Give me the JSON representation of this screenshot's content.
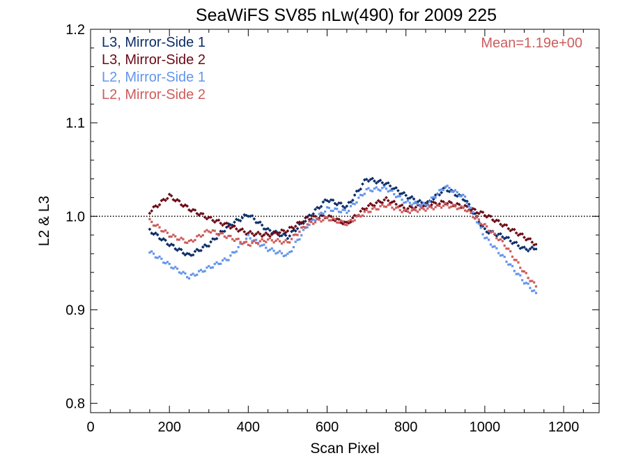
{
  "chart_data": {
    "type": "scatter",
    "title": "SeaWiFS SV85 nLw(490) for 2009 225",
    "xlabel": "Scan Pixel",
    "ylabel": "L2 & L3",
    "xlim": [
      0,
      1290
    ],
    "ylim": [
      0.79,
      1.2
    ],
    "x_ticks": [
      {
        "value": 0,
        "label": "0"
      },
      {
        "value": 200,
        "label": "200"
      },
      {
        "value": 400,
        "label": "400"
      },
      {
        "value": 600,
        "label": "600"
      },
      {
        "value": 800,
        "label": "800"
      },
      {
        "value": 1000,
        "label": "1000"
      },
      {
        "value": 1200,
        "label": "1200"
      }
    ],
    "x_minor_step": 50,
    "y_ticks": [
      {
        "value": 0.8,
        "label": "0.8"
      },
      {
        "value": 0.9,
        "label": "0.9"
      },
      {
        "value": 1.0,
        "label": "1.0"
      },
      {
        "value": 1.1,
        "label": "1.1"
      },
      {
        "value": 1.2,
        "label": "1.2"
      }
    ],
    "y_minor_step": 0.02,
    "reference_line": {
      "y": 1.0,
      "style": "dotted"
    },
    "annotation": {
      "text": "Mean=1.19e+00",
      "color": "#cd5c5c",
      "placement": "top-right"
    },
    "legend": {
      "placement": "top-left"
    },
    "series": [
      {
        "name": "L3, Mirror-Side 1",
        "color": "#0b2d66",
        "marker": "diamond",
        "x": [
          150,
          200,
          250,
          300,
          350,
          400,
          450,
          500,
          550,
          600,
          650,
          700,
          750,
          800,
          850,
          900,
          950,
          1000,
          1050,
          1100,
          1130
        ],
        "y": [
          0.985,
          0.97,
          0.958,
          0.97,
          0.99,
          1.002,
          0.985,
          0.978,
          0.998,
          1.018,
          1.01,
          1.04,
          1.035,
          1.022,
          1.012,
          1.03,
          1.018,
          0.985,
          0.978,
          0.965,
          0.965
        ]
      },
      {
        "name": "L3, Mirror-Side 2",
        "color": "#6b0a17",
        "marker": "diamond",
        "x": [
          150,
          200,
          250,
          300,
          350,
          400,
          450,
          500,
          550,
          600,
          650,
          700,
          750,
          800,
          850,
          900,
          950,
          1000,
          1050,
          1100,
          1130
        ],
        "y": [
          1.005,
          1.022,
          1.008,
          0.998,
          0.99,
          0.982,
          0.98,
          0.985,
          0.998,
          1.0,
          0.992,
          1.01,
          1.018,
          1.008,
          1.012,
          1.015,
          1.01,
          1.002,
          0.99,
          0.978,
          0.97
        ]
      },
      {
        "name": "L2, Mirror-Side 1",
        "color": "#6495ed",
        "marker": "square",
        "x": [
          150,
          200,
          250,
          300,
          350,
          400,
          450,
          500,
          550,
          600,
          650,
          700,
          750,
          800,
          850,
          900,
          950,
          1000,
          1050,
          1100,
          1130
        ],
        "y": [
          0.962,
          0.948,
          0.935,
          0.945,
          0.955,
          0.978,
          0.965,
          0.958,
          0.99,
          1.008,
          1.005,
          1.028,
          1.03,
          1.015,
          1.012,
          1.032,
          1.02,
          0.978,
          0.955,
          0.93,
          0.918
        ]
      },
      {
        "name": "L2, Mirror-Side 2",
        "color": "#cd5c5c",
        "marker": "square",
        "x": [
          150,
          200,
          250,
          300,
          350,
          400,
          450,
          500,
          550,
          600,
          650,
          700,
          750,
          800,
          850,
          900,
          950,
          1000,
          1050,
          1100,
          1130
        ],
        "y": [
          0.995,
          0.98,
          0.972,
          0.985,
          0.978,
          0.97,
          0.975,
          0.972,
          0.992,
          0.998,
          0.992,
          1.005,
          1.012,
          1.005,
          1.008,
          1.012,
          1.008,
          0.99,
          0.97,
          0.94,
          0.925
        ]
      }
    ]
  }
}
